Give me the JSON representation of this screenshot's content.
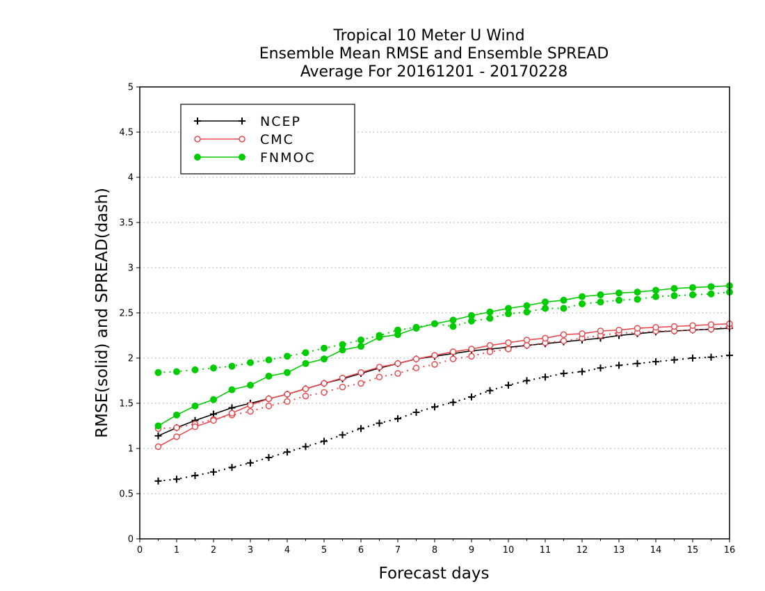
{
  "chart_data": {
    "type": "line",
    "title_lines": [
      "Tropical 10 Meter U Wind",
      "Ensemble Mean RMSE and Ensemble SPREAD",
      "Average For 20161201 - 20170228"
    ],
    "xlabel": "Forecast days",
    "ylabel": "RMSE(solid) and SPREAD(dash)",
    "xlim": [
      0,
      16
    ],
    "ylim": [
      0,
      5
    ],
    "xticks": [
      "0",
      "1",
      "2",
      "3",
      "4",
      "5",
      "6",
      "7",
      "8",
      "9",
      "10",
      "11",
      "12",
      "13",
      "14",
      "15",
      "16"
    ],
    "yticks": [
      "0",
      "0.5",
      "1",
      "1.5",
      "2",
      "2.5",
      "3",
      "3.5",
      "4",
      "4.5",
      "5"
    ],
    "grid": "horizontal dotted",
    "legend_position": "top-left",
    "x": [
      0.5,
      1,
      1.5,
      2,
      2.5,
      3,
      3.5,
      4,
      4.5,
      5,
      5.5,
      6,
      6.5,
      7,
      7.5,
      8,
      8.5,
      9,
      9.5,
      10,
      10.5,
      11,
      11.5,
      12,
      12.5,
      13,
      13.5,
      14,
      14.5,
      15,
      15.5,
      16
    ],
    "series": [
      {
        "name": "NCEP",
        "color": "#000000",
        "marker": "plus",
        "rmse": [
          1.14,
          1.23,
          1.31,
          1.38,
          1.45,
          1.5,
          1.55,
          1.6,
          1.66,
          1.72,
          1.77,
          1.83,
          1.89,
          1.94,
          1.99,
          2.02,
          2.05,
          2.08,
          2.1,
          2.12,
          2.14,
          2.16,
          2.18,
          2.2,
          2.22,
          2.25,
          2.27,
          2.29,
          2.3,
          2.31,
          2.32,
          2.33
        ],
        "spread": [
          0.64,
          0.66,
          0.7,
          0.74,
          0.79,
          0.84,
          0.9,
          0.96,
          1.02,
          1.08,
          1.15,
          1.22,
          1.28,
          1.33,
          1.4,
          1.46,
          1.51,
          1.57,
          1.64,
          1.7,
          1.75,
          1.79,
          1.83,
          1.85,
          1.89,
          1.92,
          1.94,
          1.96,
          1.98,
          2.0,
          2.01,
          2.03
        ]
      },
      {
        "name": "CMC",
        "color": "#e8494e",
        "marker": "open-circle",
        "rmse": [
          1.02,
          1.13,
          1.24,
          1.31,
          1.39,
          1.48,
          1.55,
          1.6,
          1.66,
          1.72,
          1.78,
          1.84,
          1.9,
          1.94,
          1.99,
          2.03,
          2.07,
          2.1,
          2.14,
          2.17,
          2.2,
          2.22,
          2.26,
          2.27,
          2.3,
          2.31,
          2.33,
          2.34,
          2.35,
          2.36,
          2.37,
          2.38
        ],
        "spread": [
          1.22,
          1.23,
          1.27,
          1.32,
          1.37,
          1.41,
          1.47,
          1.52,
          1.58,
          1.62,
          1.68,
          1.72,
          1.79,
          1.83,
          1.89,
          1.93,
          1.99,
          2.02,
          2.07,
          2.1,
          2.14,
          2.17,
          2.19,
          2.22,
          2.25,
          2.28,
          2.28,
          2.3,
          2.3,
          2.31,
          2.32,
          2.35
        ]
      },
      {
        "name": "FNMOC",
        "color": "#00cc00",
        "marker": "filled-circle",
        "rmse": [
          1.25,
          1.37,
          1.47,
          1.54,
          1.65,
          1.7,
          1.8,
          1.84,
          1.94,
          1.99,
          2.09,
          2.13,
          2.23,
          2.26,
          2.33,
          2.38,
          2.42,
          2.47,
          2.51,
          2.55,
          2.58,
          2.62,
          2.64,
          2.68,
          2.7,
          2.72,
          2.73,
          2.75,
          2.77,
          2.78,
          2.79,
          2.8
        ],
        "spread": [
          1.84,
          1.85,
          1.87,
          1.89,
          1.91,
          1.95,
          1.98,
          2.02,
          2.06,
          2.11,
          2.15,
          2.2,
          2.25,
          2.31,
          2.34,
          2.38,
          2.35,
          2.41,
          2.44,
          2.49,
          2.51,
          2.55,
          2.55,
          2.6,
          2.62,
          2.64,
          2.65,
          2.68,
          2.69,
          2.7,
          2.71,
          2.73
        ]
      }
    ]
  }
}
